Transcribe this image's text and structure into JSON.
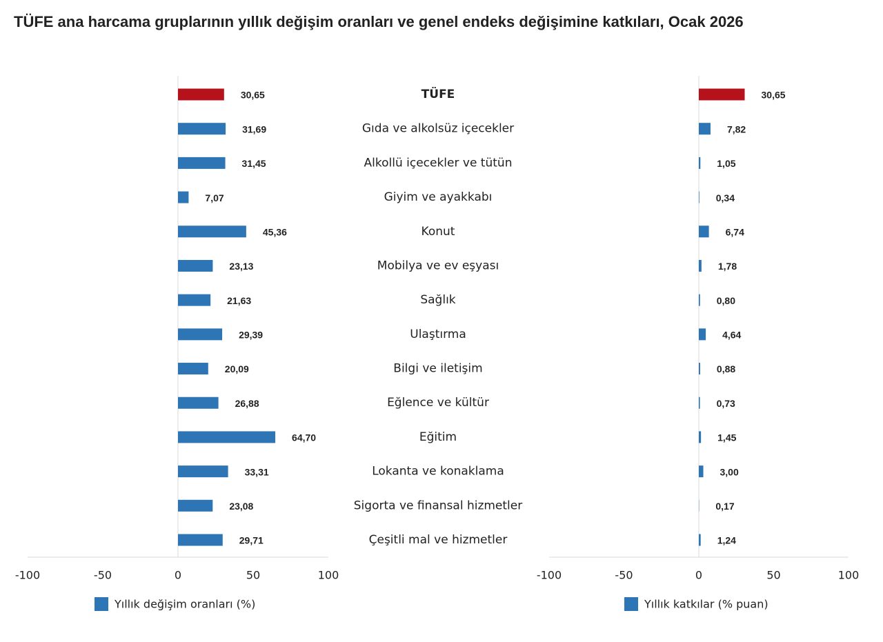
{
  "chart_data": [
    {
      "type": "bar",
      "orientation": "horizontal",
      "title": "TÜFE ana harcama gruplarının yıllık değişim oranları ve genel endeks değişimine katkıları, Ocak 2026",
      "categories": [
        "TÜFE",
        "Gıda ve alkolsüz içecekler",
        "Alkollü içecekler ve tütün",
        "Giyim ve ayakkabı",
        "Konut",
        "Mobilya ve ev eşyası",
        "Sağlık",
        "Ulaştırma",
        "Bilgi ve iletişim",
        "Eğlence ve kültür",
        "Eğitim",
        "Lokanta ve konaklama",
        "Sigorta ve finansal hizmetler",
        "Çeşitli mal ve hizmetler"
      ],
      "series": [
        {
          "name": "Yıllık değişim oranları (%)",
          "color": "#2e75b6",
          "colors": [
            "#b5121b",
            "#2e75b6",
            "#2e75b6",
            "#2e75b6",
            "#2e75b6",
            "#2e75b6",
            "#2e75b6",
            "#2e75b6",
            "#2e75b6",
            "#2e75b6",
            "#2e75b6",
            "#2e75b6",
            "#2e75b6",
            "#2e75b6"
          ],
          "values": [
            30.65,
            31.69,
            31.45,
            7.07,
            45.36,
            23.13,
            21.63,
            29.39,
            20.09,
            26.88,
            64.7,
            33.31,
            23.08,
            29.71
          ],
          "value_labels": [
            "30,65",
            "31,69",
            "31,45",
            "7,07",
            "45,36",
            "23,13",
            "21,63",
            "29,39",
            "20,09",
            "26,88",
            "64,70",
            "33,31",
            "23,08",
            "29,71"
          ]
        }
      ],
      "xlim": [
        -100,
        100
      ],
      "xticks": [
        -100,
        -50,
        0,
        50,
        100
      ]
    },
    {
      "type": "bar",
      "orientation": "horizontal",
      "series": [
        {
          "name": "Yıllık katkılar (% puan)",
          "color": "#2e75b6",
          "colors": [
            "#b5121b",
            "#2e75b6",
            "#2e75b6",
            "#2e75b6",
            "#2e75b6",
            "#2e75b6",
            "#2e75b6",
            "#2e75b6",
            "#2e75b6",
            "#2e75b6",
            "#2e75b6",
            "#2e75b6",
            "#2e75b6",
            "#2e75b6"
          ],
          "values": [
            30.65,
            7.82,
            1.05,
            0.34,
            6.74,
            1.78,
            0.8,
            4.64,
            0.88,
            0.73,
            1.45,
            3.0,
            0.17,
            1.24
          ],
          "value_labels": [
            "30,65",
            "7,82",
            "1,05",
            "0,34",
            "6,74",
            "1,78",
            "0,80",
            "4,64",
            "0,88",
            "0,73",
            "1,45",
            "3,00",
            "0,17",
            "1,24"
          ]
        }
      ],
      "xlim": [
        -100,
        100
      ],
      "xticks": [
        -100,
        -50,
        0,
        50,
        100
      ]
    }
  ]
}
